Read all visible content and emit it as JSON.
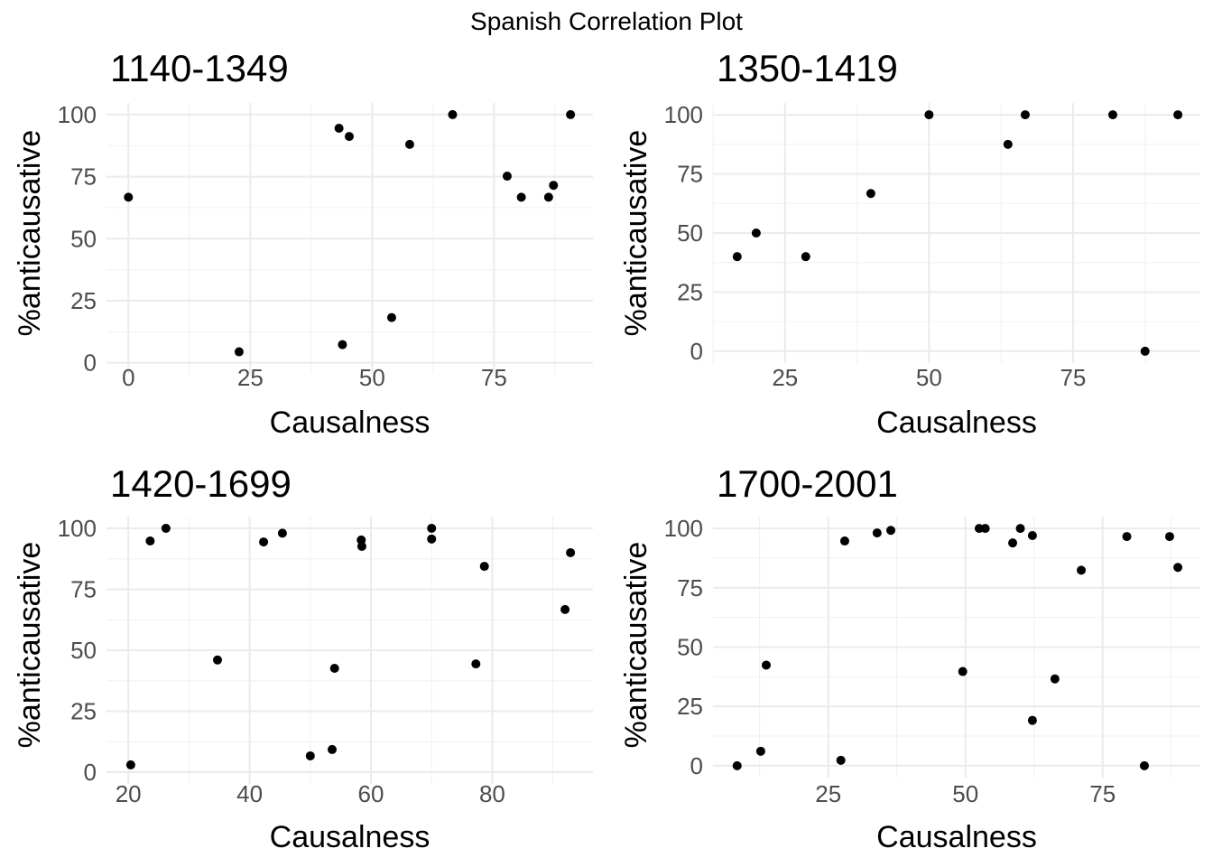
{
  "chart_data": {
    "title": "Spanish Correlation Plot",
    "panels": [
      {
        "type": "scatter",
        "title": "1140-1349",
        "xlabel": "Causalness",
        "ylabel": "%anticausative",
        "xlim": [
          -4.5,
          95.3
        ],
        "ylim": [
          -4.5,
          104.7
        ],
        "xticks": [
          0,
          25,
          50,
          75
        ],
        "yticks": [
          0,
          25,
          50,
          75,
          100
        ],
        "x": [
          0,
          22.7,
          43.2,
          45.3,
          43.9,
          54,
          57.7,
          66.5,
          77.7,
          80.6,
          86.2,
          87.2,
          90.7
        ],
        "y": [
          66.7,
          4.4,
          94.5,
          91.2,
          7.3,
          18.2,
          88,
          100,
          75.2,
          66.7,
          66.7,
          71.5,
          100
        ]
      },
      {
        "type": "scatter",
        "title": "1350-1419",
        "xlabel": "Causalness",
        "ylabel": "%anticausative",
        "xlim": [
          12.5,
          97.1
        ],
        "ylim": [
          -5,
          105
        ],
        "xticks": [
          25,
          50,
          75
        ],
        "yticks": [
          0,
          25,
          50,
          75,
          100
        ],
        "x": [
          16.7,
          20,
          28.6,
          39.9,
          50,
          63.7,
          66.7,
          81.9,
          87.5,
          93.2
        ],
        "y": [
          40,
          50,
          40,
          66.7,
          100,
          87.5,
          100,
          100,
          0,
          100
        ]
      },
      {
        "type": "scatter",
        "title": "1420-1699",
        "xlabel": "Causalness",
        "ylabel": "%anticausative",
        "xlim": [
          16.4,
          96.6
        ],
        "ylim": [
          -4.8,
          104.8
        ],
        "xticks": [
          20,
          40,
          60,
          80
        ],
        "yticks": [
          0,
          25,
          50,
          75,
          100
        ],
        "x": [
          20.4,
          23.6,
          26.2,
          34.7,
          42.3,
          45.4,
          50,
          53.6,
          54,
          58.4,
          58.5,
          70,
          70,
          77.3,
          78.7,
          92,
          92.9
        ],
        "y": [
          3,
          94.8,
          100,
          46,
          94.4,
          98,
          6.7,
          9.3,
          42.6,
          95.2,
          92.6,
          100,
          95.6,
          44.4,
          84.4,
          66.7,
          90
        ]
      },
      {
        "type": "scatter",
        "title": "1700-2001",
        "xlabel": "Causalness",
        "ylabel": "%anticausative",
        "xlim": [
          4,
          92.8
        ],
        "ylim": [
          -5,
          105
        ],
        "xticks": [
          25,
          50,
          75
        ],
        "yticks": [
          0,
          25,
          50,
          75,
          100
        ],
        "x": [
          8.4,
          12.7,
          13.7,
          27.3,
          28,
          33.9,
          36.4,
          49.5,
          52.5,
          53.6,
          58.6,
          60,
          62.2,
          62.2,
          66.3,
          71.1,
          79.4,
          82.6,
          87.2,
          88.7
        ],
        "y": [
          0,
          6.1,
          42.4,
          2.3,
          94.7,
          98.1,
          99.2,
          39.7,
          100,
          100,
          93.9,
          100,
          97,
          19.1,
          36.6,
          82.4,
          96.6,
          0,
          96.6,
          83.6
        ]
      }
    ]
  }
}
